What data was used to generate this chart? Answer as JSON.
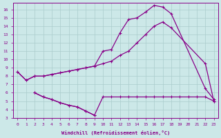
{
  "background_color": "#cce8e8",
  "grid_color": "#aacccc",
  "line_color": "#880088",
  "xlabel": "Windchill (Refroidissement éolien,°C)",
  "xlim": [
    -0.5,
    23.5
  ],
  "ylim": [
    3,
    16.8
  ],
  "yticks": [
    3,
    4,
    5,
    6,
    7,
    8,
    9,
    10,
    11,
    12,
    13,
    14,
    15,
    16
  ],
  "xticks": [
    0,
    1,
    2,
    3,
    4,
    5,
    6,
    7,
    8,
    9,
    10,
    11,
    12,
    13,
    14,
    15,
    16,
    17,
    18,
    19,
    20,
    21,
    22,
    23
  ],
  "lineA_x": [
    0,
    1,
    2,
    3,
    4,
    5,
    6,
    7,
    8,
    9,
    10,
    11,
    12,
    13,
    14,
    15,
    16,
    17,
    18,
    22,
    23
  ],
  "lineA_y": [
    8.5,
    7.5,
    8.0,
    8.0,
    8.2,
    8.4,
    8.6,
    8.8,
    9.0,
    9.2,
    11.0,
    11.2,
    13.2,
    14.8,
    15.0,
    15.7,
    16.5,
    16.3,
    15.5,
    6.5,
    5.2
  ],
  "lineB_x": [
    0,
    1,
    2,
    3,
    4,
    5,
    6,
    7,
    8,
    9,
    10,
    11,
    12,
    13,
    14,
    15,
    16,
    17,
    18,
    22,
    23
  ],
  "lineB_y": [
    8.5,
    7.5,
    8.0,
    8.0,
    8.2,
    8.4,
    8.6,
    8.8,
    9.0,
    9.2,
    9.5,
    9.8,
    10.5,
    11.0,
    12.0,
    13.0,
    14.0,
    14.5,
    13.8,
    9.5,
    5.0
  ],
  "lineC_x": [
    2,
    3,
    4,
    5,
    6,
    7,
    8,
    9,
    10,
    11,
    12,
    13,
    14,
    15,
    16,
    17,
    18,
    19,
    20,
    21,
    22,
    23
  ],
  "lineC_y": [
    6.0,
    5.5,
    5.2,
    4.8,
    4.5,
    4.3,
    3.8,
    3.3,
    5.5,
    5.5,
    5.5,
    5.5,
    5.5,
    5.5,
    5.5,
    5.5,
    5.5,
    5.5,
    5.5,
    5.5,
    5.5,
    5.0
  ],
  "lineD_x": [
    2,
    3,
    4,
    5,
    6,
    7,
    8,
    9
  ],
  "lineD_y": [
    6.0,
    5.5,
    5.2,
    4.8,
    4.5,
    4.3,
    3.8,
    3.3
  ]
}
